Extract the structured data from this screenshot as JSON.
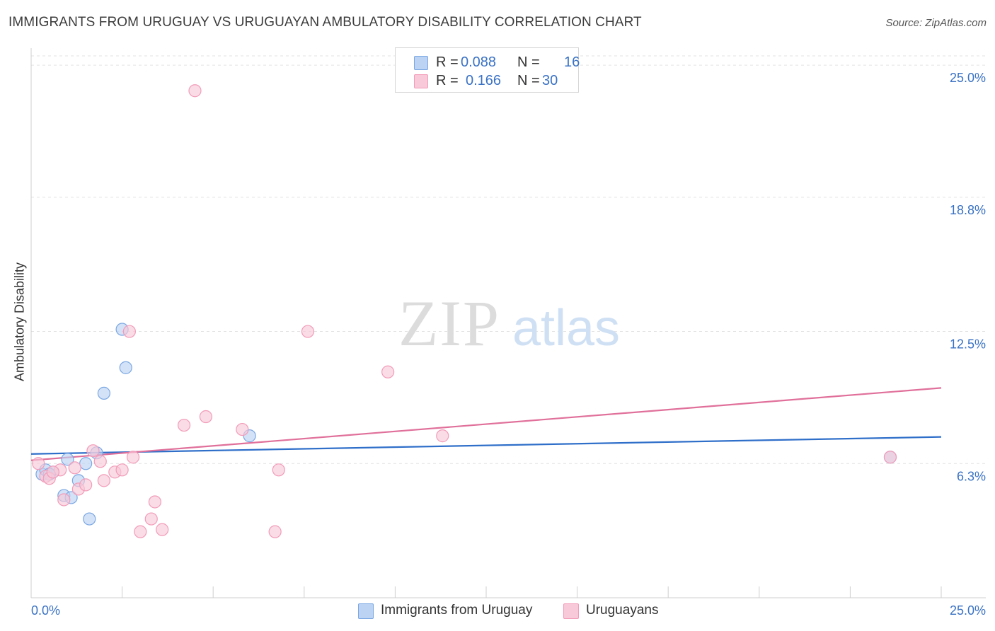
{
  "chart_data": {
    "type": "scatter",
    "title": "IMMIGRANTS FROM URUGUAY VS URUGUAYAN AMBULATORY DISABILITY CORRELATION CHART",
    "source": "Source: ZipAtlas.com",
    "watermark": {
      "zip": "ZIP",
      "atlas": "atlas"
    },
    "xlabel": "",
    "ylabel": "Ambulatory Disability",
    "xlim": [
      0,
      25
    ],
    "ylim": [
      0,
      25.8
    ],
    "x_tick_labels": {
      "left": "0.0%",
      "right": "25.0%"
    },
    "y_ticks": [
      {
        "value": 6.3,
        "label": "6.3%"
      },
      {
        "value": 12.5,
        "label": "12.5%"
      },
      {
        "value": 18.8,
        "label": "18.8%"
      },
      {
        "value": 25.0,
        "label": "25.0%"
      }
    ],
    "grid": true,
    "legend": {
      "placement": "top-center",
      "rows": [
        {
          "r_label": "R =",
          "r_value": "0.088",
          "n_label": "N =",
          "n_value": "16"
        },
        {
          "r_label": "R =",
          "r_value": "0.166",
          "n_label": "N =",
          "n_value": "30"
        }
      ]
    },
    "series": [
      {
        "name": "Immigrants from Uruguay",
        "color": "#7aa7e3",
        "fill": "#bcd3f3",
        "trend_color": "#2f6fc9",
        "trend": {
          "x": [
            0,
            25
          ],
          "y": [
            6.75,
            7.55
          ]
        },
        "points": [
          [
            0.3,
            5.8
          ],
          [
            0.4,
            6.0
          ],
          [
            0.6,
            5.9
          ],
          [
            1.0,
            6.5
          ],
          [
            0.9,
            4.8
          ],
          [
            1.1,
            4.7
          ],
          [
            1.3,
            5.5
          ],
          [
            1.5,
            6.3
          ],
          [
            1.8,
            6.8
          ],
          [
            1.6,
            3.7
          ],
          [
            2.0,
            9.6
          ],
          [
            2.5,
            12.6
          ],
          [
            2.6,
            10.8
          ],
          [
            6.0,
            7.6
          ],
          [
            23.6,
            6.6
          ],
          [
            0.5,
            5.8
          ]
        ]
      },
      {
        "name": "Uruguayans",
        "color": "#f29bb8",
        "fill": "#f8c9d8",
        "trend_color": "#e0709a",
        "trend": {
          "x": [
            0,
            25
          ],
          "y": [
            6.45,
            9.85
          ]
        },
        "points": [
          [
            0.2,
            6.3
          ],
          [
            0.4,
            5.7
          ],
          [
            0.5,
            5.6
          ],
          [
            0.8,
            6.0
          ],
          [
            0.9,
            4.6
          ],
          [
            1.2,
            6.1
          ],
          [
            1.3,
            5.1
          ],
          [
            1.5,
            5.3
          ],
          [
            1.7,
            6.9
          ],
          [
            1.9,
            6.4
          ],
          [
            2.0,
            5.5
          ],
          [
            2.3,
            5.9
          ],
          [
            2.5,
            6.0
          ],
          [
            2.7,
            12.5
          ],
          [
            2.8,
            6.6
          ],
          [
            3.0,
            3.1
          ],
          [
            3.3,
            3.7
          ],
          [
            3.4,
            4.5
          ],
          [
            3.6,
            3.2
          ],
          [
            4.2,
            8.1
          ],
          [
            4.8,
            8.5
          ],
          [
            4.5,
            23.8
          ],
          [
            5.8,
            7.9
          ],
          [
            6.8,
            6.0
          ],
          [
            6.7,
            3.1
          ],
          [
            7.6,
            12.5
          ],
          [
            9.8,
            10.6
          ],
          [
            11.3,
            7.6
          ],
          [
            23.6,
            6.6
          ],
          [
            0.6,
            5.9
          ]
        ]
      }
    ]
  }
}
